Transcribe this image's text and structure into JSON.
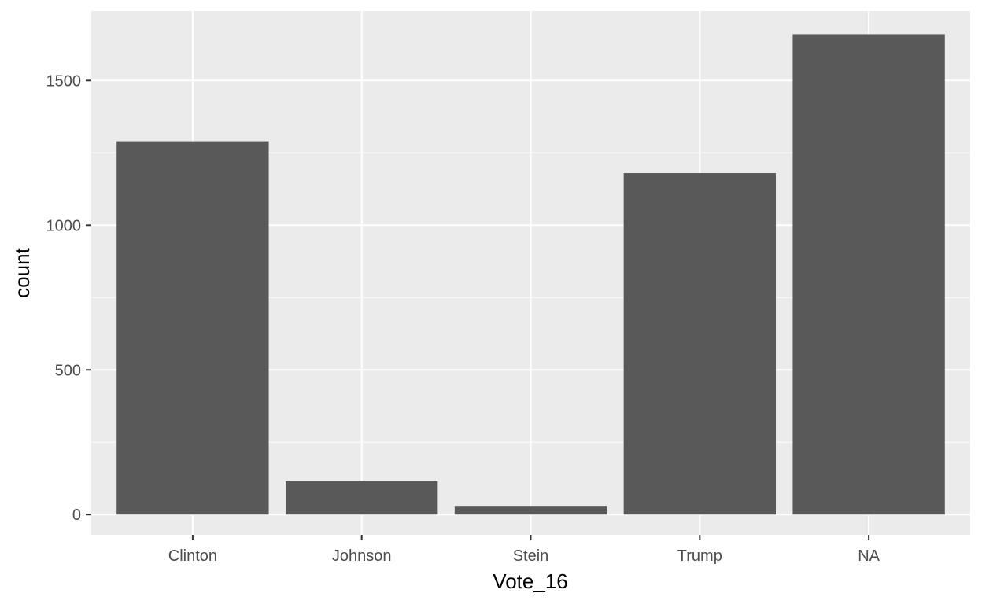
{
  "chart_data": {
    "type": "bar",
    "categories": [
      "Clinton",
      "Johnson",
      "Stein",
      "Trump",
      "NA"
    ],
    "values": [
      1290,
      115,
      30,
      1180,
      1660
    ],
    "title": "",
    "xlabel": "Vote_16",
    "ylabel": "count",
    "ylim": [
      -70,
      1740
    ],
    "y_ticks": [
      0,
      500,
      1000,
      1500
    ],
    "y_tick_labels": [
      "0",
      "500",
      "1000",
      "1500"
    ],
    "grid": true,
    "colors": {
      "panel": "#ebebeb",
      "bar": "#595959",
      "grid": "#ffffff"
    }
  }
}
